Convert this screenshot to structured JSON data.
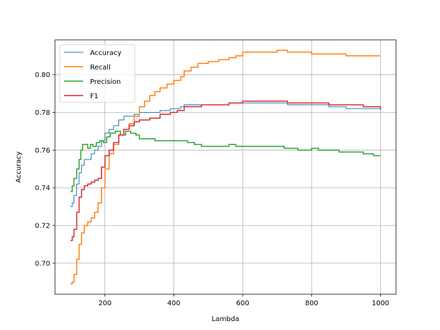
{
  "chart_data": {
    "type": "line",
    "title": "",
    "xlabel": "Lambda",
    "ylabel": "Accuracy",
    "xlim": [
      55,
      1045
    ],
    "ylim": [
      0.6835,
      0.8185
    ],
    "xticks": [
      200,
      400,
      600,
      800,
      1000
    ],
    "yticks": [
      0.7,
      0.72,
      0.74,
      0.76,
      0.78,
      0.8
    ],
    "xtick_labels": [
      "200",
      "400",
      "600",
      "800",
      "1000"
    ],
    "ytick_labels": [
      "0.70",
      "0.72",
      "0.74",
      "0.76",
      "0.78",
      "0.80"
    ],
    "grid": true,
    "legend_position": "top-left",
    "series": [
      {
        "name": "Accuracy",
        "color": "#1f77b4",
        "width": 1,
        "points": [
          [
            100,
            0.73
          ],
          [
            105,
            0.732
          ],
          [
            110,
            0.736
          ],
          [
            118,
            0.742
          ],
          [
            125,
            0.748
          ],
          [
            132,
            0.752
          ],
          [
            140,
            0.755
          ],
          [
            150,
            0.755
          ],
          [
            160,
            0.758
          ],
          [
            170,
            0.76
          ],
          [
            180,
            0.762
          ],
          [
            190,
            0.765
          ],
          [
            200,
            0.769
          ],
          [
            212,
            0.771
          ],
          [
            225,
            0.773
          ],
          [
            240,
            0.776
          ],
          [
            255,
            0.778
          ],
          [
            270,
            0.778
          ],
          [
            285,
            0.779
          ],
          [
            300,
            0.78
          ],
          [
            330,
            0.78
          ],
          [
            360,
            0.781
          ],
          [
            390,
            0.782
          ],
          [
            410,
            0.782
          ],
          [
            420,
            0.783
          ],
          [
            430,
            0.784
          ],
          [
            450,
            0.784
          ],
          [
            480,
            0.784
          ],
          [
            520,
            0.784
          ],
          [
            560,
            0.785
          ],
          [
            600,
            0.785
          ],
          [
            650,
            0.785
          ],
          [
            700,
            0.785
          ],
          [
            730,
            0.784
          ],
          [
            800,
            0.784
          ],
          [
            850,
            0.783
          ],
          [
            900,
            0.782
          ],
          [
            950,
            0.782
          ],
          [
            1000,
            0.781
          ]
        ]
      },
      {
        "name": "Recall",
        "color": "#ff7f0e",
        "width": 1.5,
        "points": [
          [
            100,
            0.689
          ],
          [
            105,
            0.69
          ],
          [
            110,
            0.694
          ],
          [
            118,
            0.702
          ],
          [
            125,
            0.71
          ],
          [
            132,
            0.716
          ],
          [
            140,
            0.72
          ],
          [
            150,
            0.722
          ],
          [
            160,
            0.724
          ],
          [
            170,
            0.727
          ],
          [
            180,
            0.732
          ],
          [
            190,
            0.74
          ],
          [
            200,
            0.75
          ],
          [
            212,
            0.758
          ],
          [
            225,
            0.763
          ],
          [
            240,
            0.768
          ],
          [
            255,
            0.771
          ],
          [
            270,
            0.774
          ],
          [
            285,
            0.778
          ],
          [
            300,
            0.783
          ],
          [
            315,
            0.786
          ],
          [
            330,
            0.789
          ],
          [
            345,
            0.791
          ],
          [
            360,
            0.793
          ],
          [
            380,
            0.795
          ],
          [
            400,
            0.797
          ],
          [
            420,
            0.799
          ],
          [
            430,
            0.802
          ],
          [
            450,
            0.804
          ],
          [
            470,
            0.806
          ],
          [
            500,
            0.807
          ],
          [
            530,
            0.808
          ],
          [
            560,
            0.809
          ],
          [
            580,
            0.81
          ],
          [
            600,
            0.812
          ],
          [
            650,
            0.812
          ],
          [
            700,
            0.813
          ],
          [
            730,
            0.812
          ],
          [
            800,
            0.811
          ],
          [
            850,
            0.811
          ],
          [
            900,
            0.81
          ],
          [
            950,
            0.81
          ],
          [
            1000,
            0.81
          ]
        ]
      },
      {
        "name": "Precision",
        "color": "#2ca02c",
        "width": 1.5,
        "points": [
          [
            100,
            0.738
          ],
          [
            105,
            0.741
          ],
          [
            110,
            0.745
          ],
          [
            118,
            0.75
          ],
          [
            125,
            0.755
          ],
          [
            130,
            0.76
          ],
          [
            135,
            0.763
          ],
          [
            142,
            0.763
          ],
          [
            150,
            0.761
          ],
          [
            158,
            0.763
          ],
          [
            165,
            0.762
          ],
          [
            175,
            0.764
          ],
          [
            185,
            0.765
          ],
          [
            195,
            0.764
          ],
          [
            205,
            0.767
          ],
          [
            215,
            0.769
          ],
          [
            230,
            0.77
          ],
          [
            245,
            0.768
          ],
          [
            260,
            0.77
          ],
          [
            275,
            0.769
          ],
          [
            290,
            0.768
          ],
          [
            300,
            0.766
          ],
          [
            320,
            0.766
          ],
          [
            345,
            0.765
          ],
          [
            380,
            0.765
          ],
          [
            420,
            0.765
          ],
          [
            440,
            0.764
          ],
          [
            460,
            0.763
          ],
          [
            480,
            0.762
          ],
          [
            520,
            0.762
          ],
          [
            560,
            0.763
          ],
          [
            580,
            0.762
          ],
          [
            620,
            0.762
          ],
          [
            680,
            0.762
          ],
          [
            720,
            0.761
          ],
          [
            760,
            0.76
          ],
          [
            800,
            0.761
          ],
          [
            820,
            0.76
          ],
          [
            880,
            0.759
          ],
          [
            950,
            0.758
          ],
          [
            980,
            0.757
          ],
          [
            1000,
            0.757
          ]
        ]
      },
      {
        "name": "F1",
        "color": "#d62728",
        "width": 1.5,
        "points": [
          [
            100,
            0.712
          ],
          [
            105,
            0.714
          ],
          [
            110,
            0.718
          ],
          [
            118,
            0.727
          ],
          [
            125,
            0.735
          ],
          [
            132,
            0.739
          ],
          [
            140,
            0.741
          ],
          [
            150,
            0.742
          ],
          [
            160,
            0.743
          ],
          [
            170,
            0.744
          ],
          [
            180,
            0.745
          ],
          [
            190,
            0.751
          ],
          [
            200,
            0.757
          ],
          [
            212,
            0.76
          ],
          [
            225,
            0.764
          ],
          [
            240,
            0.768
          ],
          [
            255,
            0.771
          ],
          [
            270,
            0.773
          ],
          [
            285,
            0.775
          ],
          [
            300,
            0.776
          ],
          [
            330,
            0.777
          ],
          [
            360,
            0.779
          ],
          [
            390,
            0.78
          ],
          [
            410,
            0.781
          ],
          [
            430,
            0.783
          ],
          [
            450,
            0.783
          ],
          [
            480,
            0.784
          ],
          [
            520,
            0.784
          ],
          [
            560,
            0.785
          ],
          [
            580,
            0.785
          ],
          [
            600,
            0.786
          ],
          [
            650,
            0.786
          ],
          [
            700,
            0.786
          ],
          [
            730,
            0.785
          ],
          [
            800,
            0.785
          ],
          [
            850,
            0.784
          ],
          [
            900,
            0.784
          ],
          [
            950,
            0.783
          ],
          [
            1000,
            0.782
          ]
        ]
      }
    ]
  }
}
